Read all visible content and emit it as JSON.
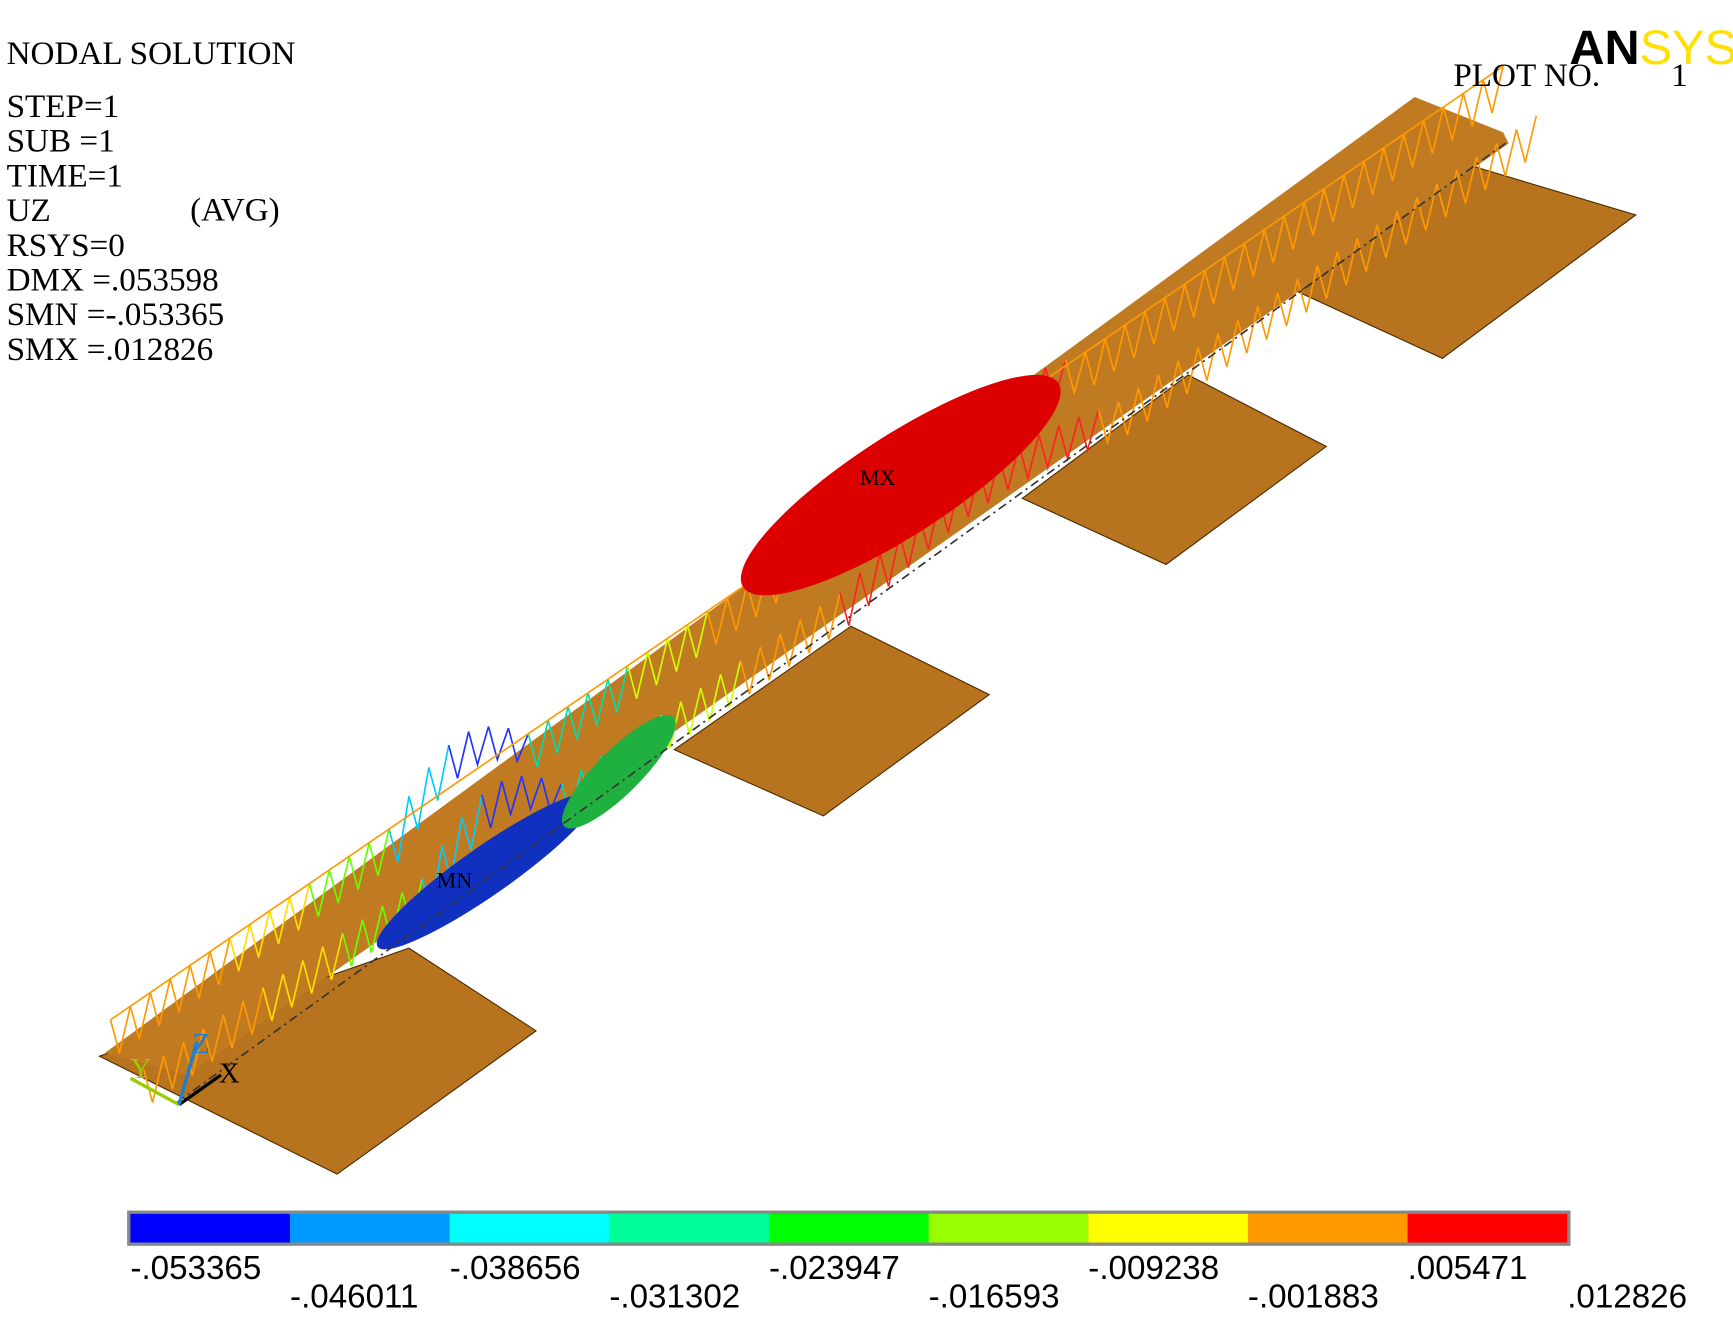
{
  "header": {
    "title": "NODAL SOLUTION",
    "lines": [
      "STEP=1",
      "SUB =1",
      "TIME=1",
      "UZ",
      "RSYS=0",
      "DMX =.053598",
      "SMN =-.053365",
      "SMX =.012826"
    ],
    "avg": "(AVG)"
  },
  "logo": {
    "an": "AN",
    "sys": "SYS"
  },
  "plot_label": "PLOT NO.",
  "plot_number": "1",
  "markers": {
    "max": "MX",
    "min": "MN"
  },
  "axes": {
    "x": "X",
    "y": "Y",
    "z": "Z"
  },
  "legend": {
    "labels": [
      "-.053365",
      "-.046011",
      "-.038656",
      "-.031302",
      "-.023947",
      "-.016593",
      "-.009238",
      "-.001883",
      ".005471",
      ".012826"
    ],
    "colors": [
      "#0000ff",
      "#0099ff",
      "#00ffff",
      "#00ff99",
      "#00ff00",
      "#99ff00",
      "#ffff00",
      "#ff9900",
      "#ff0000"
    ]
  }
}
